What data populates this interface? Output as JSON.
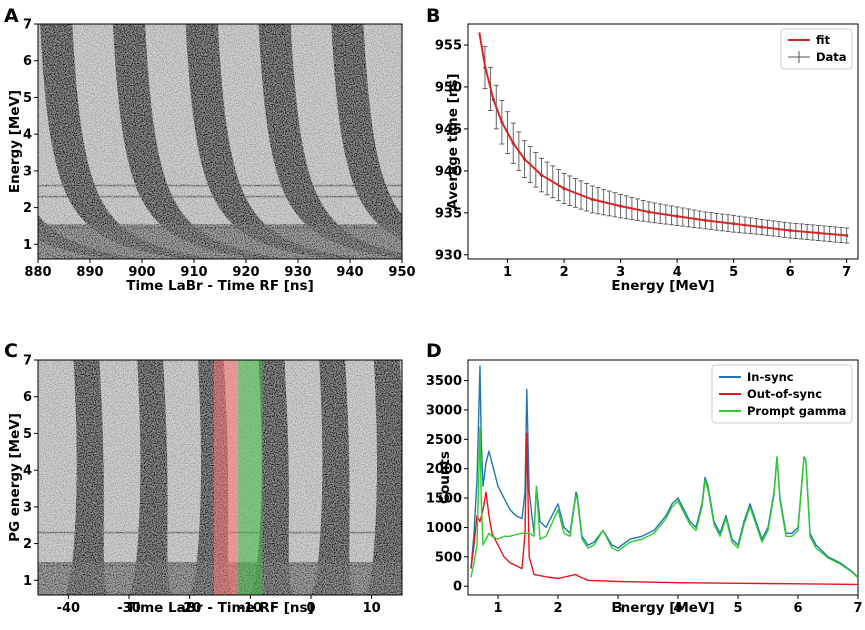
{
  "figure": {
    "panels": [
      "A",
      "B",
      "C",
      "D"
    ]
  },
  "chart_data": [
    {
      "panel": "A",
      "type": "heatmap",
      "title": "",
      "xlabel": "Time LaBr - Time RF [ns]",
      "ylabel": "Energy [MeV]",
      "xlim": [
        880,
        950
      ],
      "ylim": [
        0.6,
        7
      ],
      "xticks": [
        880,
        890,
        900,
        910,
        920,
        930,
        940,
        950
      ],
      "yticks": [
        1,
        2,
        3,
        4,
        5,
        6,
        7
      ],
      "band_centers_at_7MeV": [
        883.5,
        897.5,
        911.5,
        925.5,
        939.5
      ],
      "band_period_ns": 14
    },
    {
      "panel": "B",
      "type": "scatter",
      "title": "",
      "xlabel": "Energy [MeV]",
      "ylabel": "Average time [ns]",
      "xlim": [
        0.3,
        7.2
      ],
      "ylim": [
        929.5,
        957.5
      ],
      "xticks": [
        1,
        2,
        3,
        4,
        5,
        6,
        7
      ],
      "yticks": [
        930,
        935,
        940,
        945,
        950,
        955
      ],
      "legend": [
        "fit",
        "Data"
      ],
      "legend_position": "top-right",
      "series": [
        {
          "name": "fit",
          "color": "#d62728",
          "x": [
            0.5,
            0.6,
            0.75,
            0.9,
            1.1,
            1.3,
            1.6,
            2.0,
            2.5,
            3.0,
            3.5,
            4.0,
            4.5,
            5.0,
            5.5,
            6.0,
            6.5,
            7.0
          ],
          "y": [
            956.5,
            952.5,
            948.5,
            945.8,
            943.3,
            941.4,
            939.5,
            937.9,
            936.6,
            935.8,
            935.1,
            934.6,
            934.1,
            933.7,
            933.3,
            932.9,
            932.6,
            932.3
          ]
        },
        {
          "name": "Data",
          "color": "#555555",
          "x": [
            0.6,
            0.75,
            0.9,
            1.1,
            1.3,
            1.6,
            2.0,
            2.5,
            3.0,
            3.5,
            4.0,
            4.5,
            5.0,
            5.5,
            6.0,
            6.5,
            7.0
          ],
          "y": [
            952.3,
            948.5,
            945.8,
            943.3,
            941.4,
            939.5,
            937.9,
            936.6,
            935.8,
            935.1,
            934.6,
            934.1,
            933.7,
            933.3,
            932.9,
            932.6,
            932.3
          ],
          "err": [
            2.5,
            2.6,
            2.6,
            2.4,
            2.2,
            2.0,
            1.8,
            1.6,
            1.4,
            1.2,
            1.1,
            1.0,
            1.0,
            0.9,
            0.9,
            0.9,
            0.9
          ]
        }
      ]
    },
    {
      "panel": "C",
      "type": "heatmap",
      "title": "",
      "xlabel": "Time LaBr - Time RF [ns]",
      "ylabel": "PG energy [MeV]",
      "xlim": [
        -45,
        15
      ],
      "ylim": [
        0.6,
        7
      ],
      "xticks": [
        -40,
        -30,
        -20,
        -10,
        0,
        10
      ],
      "yticks": [
        1,
        2,
        3,
        4,
        5,
        6,
        7
      ],
      "band_centers_ns": [
        -37,
        -26.5,
        -16.5,
        -6.5,
        3.5,
        12.5
      ],
      "highlight_regions": [
        {
          "name": "Out-of-sync window",
          "range": [
            -16,
            -12
          ],
          "color": "#ff7777"
        },
        {
          "name": "In-sync window",
          "range": [
            -12,
            -8
          ],
          "color": "#44bb44"
        }
      ]
    },
    {
      "panel": "D",
      "type": "line",
      "title": "",
      "xlabel": "Energy [MeV]",
      "ylabel": "Counts",
      "xlim": [
        0.5,
        7
      ],
      "ylim": [
        -150,
        3850
      ],
      "xticks": [
        1,
        2,
        3,
        4,
        5,
        6,
        7
      ],
      "yticks": [
        0,
        500,
        1000,
        1500,
        2000,
        2500,
        3000,
        3500
      ],
      "legend": [
        "In-sync",
        "Out-of-sync",
        "Prompt gamma"
      ],
      "legend_position": "top-right",
      "series": [
        {
          "name": "In-sync",
          "color": "#1f77b4",
          "x": [
            0.55,
            0.6,
            0.65,
            0.7,
            0.72,
            0.75,
            0.8,
            0.85,
            0.9,
            1.0,
            1.1,
            1.2,
            1.3,
            1.4,
            1.45,
            1.48,
            1.52,
            1.6,
            1.64,
            1.7,
            1.8,
            2.0,
            2.1,
            2.2,
            2.3,
            2.32,
            2.4,
            2.5,
            2.6,
            2.75,
            2.9,
            3.0,
            3.2,
            3.4,
            3.6,
            3.8,
            3.9,
            4.0,
            4.1,
            4.2,
            4.3,
            4.4,
            4.45,
            4.5,
            4.6,
            4.7,
            4.8,
            4.9,
            5.0,
            5.1,
            5.2,
            5.3,
            5.4,
            5.5,
            5.6,
            5.65,
            5.7,
            5.8,
            5.9,
            6.0,
            6.1,
            6.13,
            6.2,
            6.3,
            6.5,
            6.7,
            6.9,
            7.0
          ],
          "y": [
            300,
            900,
            1800,
            3750,
            2500,
            1700,
            2100,
            2300,
            2100,
            1700,
            1500,
            1300,
            1200,
            1150,
            1600,
            3350,
            1600,
            900,
            1700,
            1100,
            1000,
            1400,
            1000,
            900,
            1600,
            1550,
            850,
            700,
            750,
            950,
            700,
            650,
            800,
            850,
            950,
            1200,
            1400,
            1500,
            1300,
            1100,
            1000,
            1400,
            1850,
            1700,
            1100,
            900,
            1200,
            800,
            700,
            1100,
            1400,
            1100,
            800,
            1000,
            1600,
            2200,
            1500,
            900,
            900,
            1000,
            2200,
            2150,
            900,
            700,
            500,
            400,
            250,
            150
          ]
        },
        {
          "name": "Out-of-sync",
          "color": "#e8141c",
          "x": [
            0.55,
            0.6,
            0.65,
            0.7,
            0.75,
            0.8,
            0.85,
            0.9,
            1.0,
            1.1,
            1.2,
            1.3,
            1.4,
            1.45,
            1.48,
            1.52,
            1.6,
            1.8,
            2.0,
            2.3,
            2.32,
            2.5,
            3.0,
            4.0,
            5.0,
            6.0,
            7.0
          ],
          "y": [
            300,
            700,
            1200,
            1100,
            1300,
            1600,
            1200,
            900,
            700,
            500,
            400,
            350,
            300,
            900,
            2600,
            500,
            200,
            160,
            130,
            200,
            180,
            100,
            80,
            60,
            50,
            40,
            30
          ]
        },
        {
          "name": "Prompt gamma",
          "color": "#2ecc2e",
          "x": [
            0.55,
            0.6,
            0.65,
            0.7,
            0.72,
            0.75,
            0.8,
            0.85,
            0.9,
            1.0,
            1.1,
            1.2,
            1.3,
            1.4,
            1.45,
            1.48,
            1.52,
            1.6,
            1.64,
            1.7,
            1.8,
            2.0,
            2.1,
            2.2,
            2.3,
            2.32,
            2.4,
            2.5,
            2.6,
            2.75,
            2.9,
            3.0,
            3.2,
            3.4,
            3.6,
            3.8,
            3.9,
            4.0,
            4.1,
            4.2,
            4.3,
            4.4,
            4.45,
            4.5,
            4.6,
            4.7,
            4.8,
            4.9,
            5.0,
            5.1,
            5.2,
            5.3,
            5.4,
            5.5,
            5.6,
            5.65,
            5.7,
            5.8,
            5.9,
            6.0,
            6.1,
            6.13,
            6.2,
            6.3,
            6.5,
            6.7,
            6.9,
            7.0
          ],
          "y": [
            150,
            400,
            700,
            2700,
            1500,
            700,
            800,
            900,
            850,
            800,
            850,
            850,
            880,
            900,
            900,
            900,
            900,
            850,
            1700,
            800,
            850,
            1300,
            900,
            850,
            1550,
            1500,
            800,
            650,
            700,
            950,
            650,
            600,
            750,
            800,
            900,
            1150,
            1350,
            1450,
            1250,
            1050,
            950,
            1350,
            1800,
            1650,
            1050,
            850,
            1150,
            750,
            650,
            1050,
            1350,
            1050,
            750,
            950,
            1550,
            2200,
            1450,
            850,
            850,
            950,
            2200,
            2150,
            850,
            650,
            480,
            380,
            240,
            140
          ]
        }
      ]
    }
  ]
}
